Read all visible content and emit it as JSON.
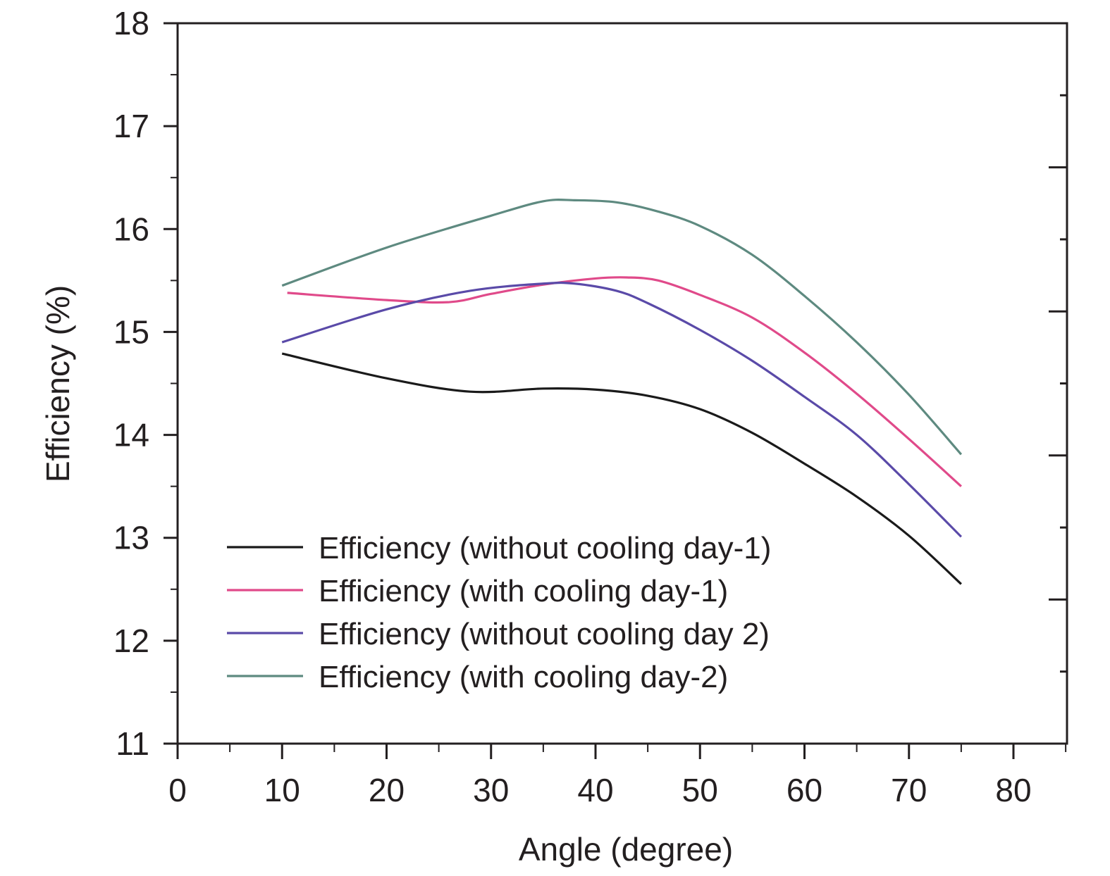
{
  "chart_data": {
    "type": "line",
    "title": "",
    "xlabel": "Angle (degree)",
    "ylabel": "Efficiency (%)",
    "xlim": [
      0,
      85
    ],
    "ylim": [
      11,
      18
    ],
    "xticks": [
      0,
      10,
      20,
      30,
      40,
      50,
      60,
      70,
      80
    ],
    "xtick_labels": [
      "0",
      "10",
      "20",
      "30",
      "40",
      "50",
      "60",
      "70",
      "80"
    ],
    "yticks": [
      11,
      12,
      13,
      14,
      15,
      16,
      17,
      18
    ],
    "ytick_labels": [
      "11",
      "12",
      "13",
      "14",
      "15",
      "16",
      "17",
      "18"
    ],
    "grid": false,
    "legend_position": "bottom-left",
    "series": [
      {
        "name": "Efficiency (without cooling day-1)",
        "color": "#1a1a1a",
        "x": [
          10,
          20,
          28,
          35,
          40,
          45,
          50,
          55,
          60,
          65,
          70,
          75
        ],
        "y": [
          14.79,
          14.55,
          14.42,
          14.45,
          14.44,
          14.38,
          14.25,
          14.02,
          13.72,
          13.4,
          13.02,
          12.55
        ]
      },
      {
        "name": "Efficiency (with cooling day-1)",
        "color": "#e04a8a",
        "x": [
          10.5,
          20,
          26,
          30,
          35,
          40,
          43,
          46,
          50,
          55,
          60,
          65,
          70,
          75
        ],
        "y": [
          15.38,
          15.31,
          15.29,
          15.37,
          15.46,
          15.52,
          15.53,
          15.5,
          15.36,
          15.14,
          14.8,
          14.4,
          13.96,
          13.5
        ]
      },
      {
        "name": "Efficiency (without cooling day 2)",
        "color": "#5a4aa8",
        "x": [
          10,
          20,
          28,
          35,
          38,
          42,
          45,
          50,
          55,
          60,
          65,
          70,
          75
        ],
        "y": [
          14.9,
          15.22,
          15.4,
          15.47,
          15.47,
          15.4,
          15.28,
          15.02,
          14.72,
          14.37,
          14.0,
          13.52,
          13.01
        ]
      },
      {
        "name": "Efficiency (with cooling day-2)",
        "color": "#5e8a80",
        "x": [
          10,
          20,
          30,
          35,
          38,
          42,
          46,
          50,
          55,
          60,
          65,
          70,
          75
        ],
        "y": [
          15.45,
          15.82,
          16.13,
          16.27,
          16.28,
          16.26,
          16.17,
          16.03,
          15.75,
          15.35,
          14.9,
          14.39,
          13.81
        ]
      }
    ]
  }
}
